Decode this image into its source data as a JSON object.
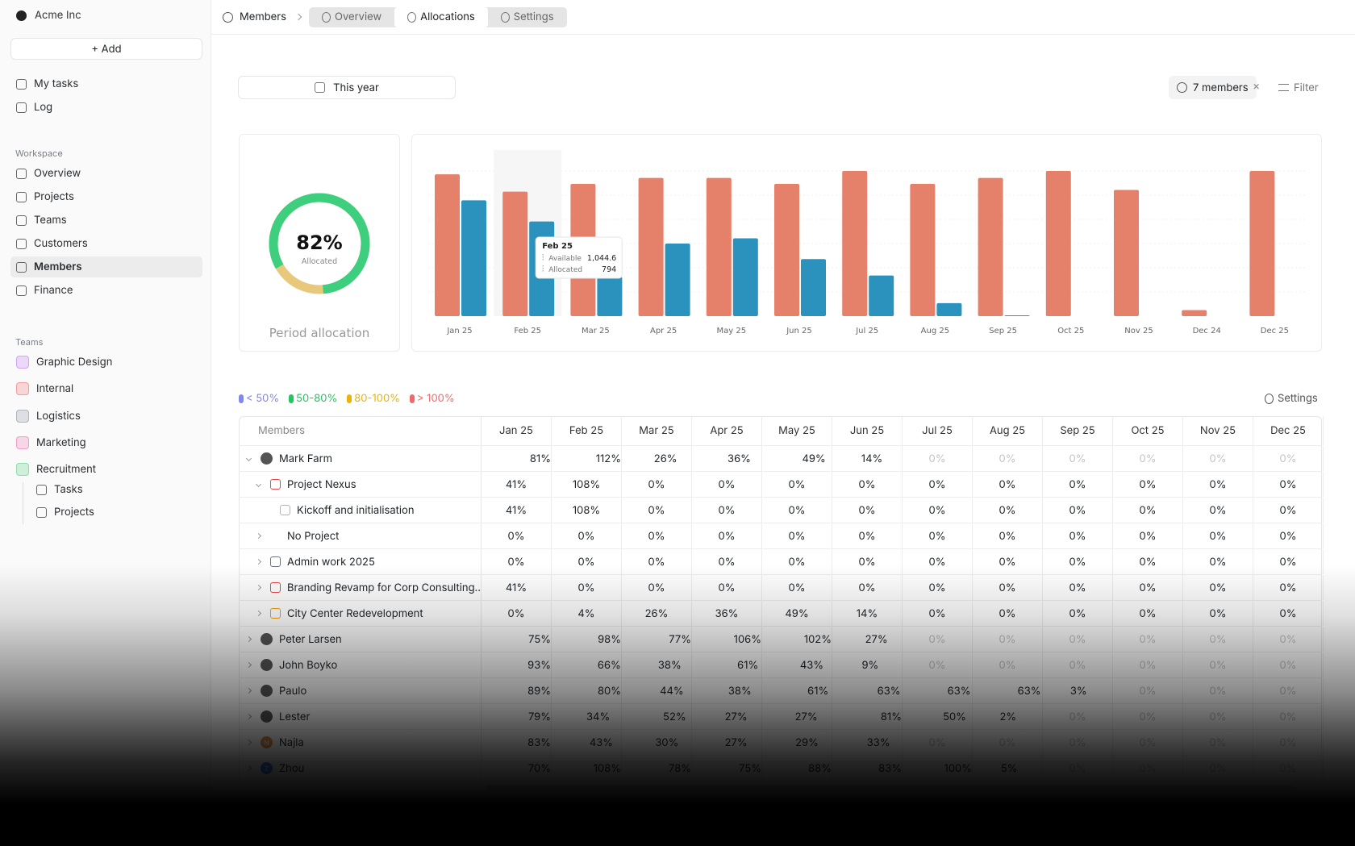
{
  "sidebar": {
    "org": "Acme Inc",
    "add": "+ Add",
    "top": [
      "My tasks",
      "Log"
    ],
    "workspace": {
      "title": "Workspace",
      "items": [
        "Overview",
        "Projects",
        "Teams",
        "Customers",
        "Members",
        "Finance"
      ],
      "active": "Members"
    },
    "teams": {
      "title": "Teams",
      "items": [
        {
          "name": "Graphic Design",
          "color": "#a855f7"
        },
        {
          "name": "Internal",
          "color": "#ef4444"
        },
        {
          "name": "Logistics",
          "color": "#6b7280"
        },
        {
          "name": "Marketing",
          "color": "#ec4899"
        },
        {
          "name": "Recruitment",
          "color": "#22c55e"
        }
      ],
      "sub": [
        "Tasks",
        "Projects"
      ]
    }
  },
  "header": {
    "crumb": "Members",
    "tabs": [
      "Overview",
      "Allocations",
      "Settings"
    ],
    "active": "Allocations"
  },
  "toolbar": {
    "period": "This year",
    "members": "7 members",
    "filter": "Filter"
  },
  "donut": {
    "value": 82,
    "value_label": "82%",
    "caption": "Allocated",
    "title": "Period allocation",
    "color": "#3ecf7e",
    "rest_color": "#e8c97c"
  },
  "chart_data": {
    "type": "bar",
    "categories": [
      "Jan 25",
      "Feb 25",
      "Mar 25",
      "Apr 25",
      "May 25",
      "Jun 25",
      "Jul 25",
      "Aug 25",
      "Sep 25",
      "Oct 25",
      "Nov 25",
      "Dec 24",
      "Dec 25"
    ],
    "series": [
      {
        "name": "Available",
        "color": "#e5806a",
        "values": [
          1190,
          1044.6,
          1110,
          1160,
          1160,
          1110,
          1218,
          1110,
          1160,
          1218,
          1059,
          51,
          1218
        ],
        "value_labels": [
          null,
          "1,044.6",
          null,
          null,
          null,
          null,
          null,
          null,
          null,
          null,
          null,
          null,
          null
        ]
      },
      {
        "name": "Allocated",
        "color": "#2b92bd",
        "values": [
          972,
          794,
          330,
          609,
          653,
          479,
          341,
          109,
          7,
          0,
          0,
          0,
          0
        ],
        "value_labels": [
          null,
          "794",
          null,
          null,
          null,
          null,
          null,
          null,
          null,
          null,
          null,
          null,
          null
        ]
      }
    ]
  },
  "legend": [
    {
      "label": "< 50%",
      "color": "#7f88ec",
      "fill": "#c8cdfa",
      "range": [
        null,
        50
      ]
    },
    {
      "label": "50-80%",
      "color": "#22c55e",
      "fill": "#a8efc4",
      "range": [
        50,
        80
      ]
    },
    {
      "label": "80-100%",
      "color": "#eab308",
      "fill": "#fdf08c",
      "range": [
        80,
        100
      ]
    },
    {
      "label": "> 100%",
      "color": "#f06a6a",
      "fill": "#fbcaca",
      "range": [
        100,
        null
      ]
    }
  ],
  "settings": "Settings",
  "table": {
    "header": "Members",
    "columns": [
      "Jan 25",
      "Feb 25",
      "Mar 25",
      "Apr 25",
      "May 25",
      "Jun 25",
      "Jul 25",
      "Aug 25",
      "Sep 25",
      "Oct 25",
      "Nov 25",
      "Dec 25"
    ],
    "rows": [
      {
        "name": "Mark Farm",
        "level": 0,
        "expanded": true,
        "values": [
          81,
          112,
          26,
          36,
          49,
          14,
          0,
          0,
          0,
          0,
          0,
          0
        ],
        "value_labels": [
          "81%",
          "112%",
          "26%",
          "36%",
          "49%",
          "14%",
          "0%",
          "0%",
          "0%",
          "0%",
          "0%",
          "0%"
        ]
      },
      {
        "name": "Project Nexus",
        "level": 1,
        "expanded": true,
        "icon_color": "#ef4444",
        "cells": [
          "41%",
          "108%",
          "0%",
          "0%",
          "0%",
          "0%",
          "0%",
          "0%",
          "0%",
          "0%",
          "0%",
          "0%"
        ]
      },
      {
        "name": "Kickoff and initialisation",
        "level": 2,
        "icon_color": "#b0b4ba",
        "cells": [
          "41%",
          "108%",
          "0%",
          "0%",
          "0%",
          "0%",
          "0%",
          "0%",
          "0%",
          "0%",
          "0%",
          "0%"
        ]
      },
      {
        "name": "No Project",
        "level": 1,
        "cells": [
          "0%",
          "0%",
          "0%",
          "0%",
          "0%",
          "0%",
          "0%",
          "0%",
          "0%",
          "0%",
          "0%",
          "0%"
        ]
      },
      {
        "name": "Admin work 2025",
        "level": 1,
        "icon_color": "#6b7280",
        "cells": [
          "0%",
          "0%",
          "0%",
          "0%",
          "0%",
          "0%",
          "0%",
          "0%",
          "0%",
          "0%",
          "0%",
          "0%"
        ]
      },
      {
        "name": "Branding Revamp for Corp Consulting...",
        "level": 1,
        "icon_color": "#ef4444",
        "cells": [
          "41%",
          "0%",
          "0%",
          "0%",
          "0%",
          "0%",
          "0%",
          "0%",
          "0%",
          "0%",
          "0%",
          "0%"
        ]
      },
      {
        "name": "City Center Redevelopment",
        "level": 1,
        "icon_color": "#f59e0b",
        "cells": [
          "0%",
          "4%",
          "26%",
          "36%",
          "49%",
          "14%",
          "0%",
          "0%",
          "0%",
          "0%",
          "0%",
          "0%"
        ]
      },
      {
        "name": "Peter Larsen",
        "level": 0,
        "values": [
          75,
          98,
          77,
          106,
          102,
          27,
          0,
          0,
          0,
          0,
          0,
          0
        ],
        "value_labels": [
          "75%",
          "98%",
          "77%",
          "106%",
          "102%",
          "27%",
          "0%",
          "0%",
          "0%",
          "0%",
          "0%",
          "0%"
        ]
      },
      {
        "name": "John Boyko",
        "level": 0,
        "values": [
          93,
          66,
          38,
          61,
          43,
          9,
          0,
          0,
          0,
          0,
          0,
          0
        ],
        "value_labels": [
          "93%",
          "66%",
          "38%",
          "61%",
          "43%",
          "9%",
          "0%",
          "0%",
          "0%",
          "0%",
          "0%",
          "0%"
        ]
      },
      {
        "name": "Paulo",
        "level": 0,
        "values": [
          89,
          80,
          44,
          38,
          61,
          63,
          63,
          63,
          3,
          0,
          0,
          0
        ],
        "value_labels": [
          "89%",
          "80%",
          "44%",
          "38%",
          "61%",
          "63%",
          "63%",
          "63%",
          "3%",
          "0%",
          "0%",
          "0%"
        ]
      },
      {
        "name": "Lester",
        "level": 0,
        "values": [
          79,
          34,
          52,
          27,
          27,
          81,
          50,
          2,
          0,
          0,
          0,
          0
        ],
        "value_labels": [
          "79%",
          "34%",
          "52%",
          "27%",
          "27%",
          "81%",
          "50%",
          "2%",
          "0%",
          "0%",
          "0%",
          "0%"
        ]
      },
      {
        "name": "Najla",
        "level": 0,
        "avatar": "N",
        "avatar_color": "#e5904a",
        "values": [
          83,
          43,
          30,
          27,
          29,
          33,
          0,
          0,
          0,
          0,
          0,
          0
        ],
        "value_labels": [
          "83%",
          "43%",
          "30%",
          "27%",
          "29%",
          "33%",
          "0%",
          "0%",
          "0%",
          "0%",
          "0%",
          "0%"
        ]
      },
      {
        "name": "Zhou",
        "level": 0,
        "avatar": "Z",
        "avatar_color": "#3b82f6",
        "values": [
          70,
          108,
          78,
          75,
          88,
          83,
          100,
          5,
          0,
          0,
          0,
          0
        ],
        "value_labels": [
          "70%",
          "108%",
          "78%",
          "75%",
          "88%",
          "83%",
          "100%",
          "5%",
          "0%",
          "0%",
          "0%",
          "0%"
        ]
      }
    ]
  }
}
